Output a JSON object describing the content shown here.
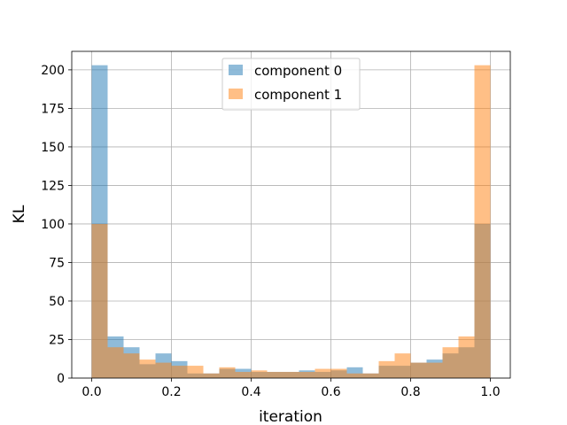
{
  "chart_data": {
    "type": "bar",
    "title": "",
    "xlabel": "iteration",
    "ylabel": "KL",
    "xlim": [
      -0.05,
      1.05
    ],
    "ylim": [
      0,
      212
    ],
    "xticks": [
      0.0,
      0.2,
      0.4,
      0.6,
      0.8,
      1.0
    ],
    "xtick_labels": [
      "0.0",
      "0.2",
      "0.4",
      "0.6",
      "0.8",
      "1.0"
    ],
    "yticks": [
      0,
      25,
      50,
      75,
      100,
      125,
      150,
      175,
      200
    ],
    "ytick_labels": [
      "0",
      "25",
      "50",
      "75",
      "100",
      "125",
      "150",
      "175",
      "200"
    ],
    "grid": true,
    "legend_position": "top-center",
    "bin_edges": [
      0.0,
      0.04,
      0.08,
      0.12,
      0.16,
      0.2,
      0.24,
      0.28,
      0.32,
      0.36,
      0.4,
      0.44,
      0.48,
      0.52,
      0.56,
      0.6,
      0.64,
      0.68,
      0.72,
      0.76,
      0.8,
      0.84,
      0.88,
      0.92,
      0.96,
      1.0
    ],
    "series": [
      {
        "name": "component 0",
        "color": "#1f77b4",
        "opacity": 0.5,
        "values": [
          203,
          27,
          20,
          9,
          16,
          11,
          3,
          3,
          6,
          6,
          4,
          4,
          4,
          5,
          4,
          5,
          7,
          3,
          8,
          8,
          10,
          12,
          16,
          20,
          100
        ]
      },
      {
        "name": "component 1",
        "color": "#ff7f0e",
        "opacity": 0.5,
        "values": [
          100,
          20,
          16,
          12,
          10,
          8,
          8,
          3,
          7,
          4,
          5,
          4,
          4,
          4,
          6,
          6,
          3,
          3,
          11,
          16,
          10,
          10,
          20,
          27,
          203
        ]
      }
    ]
  }
}
